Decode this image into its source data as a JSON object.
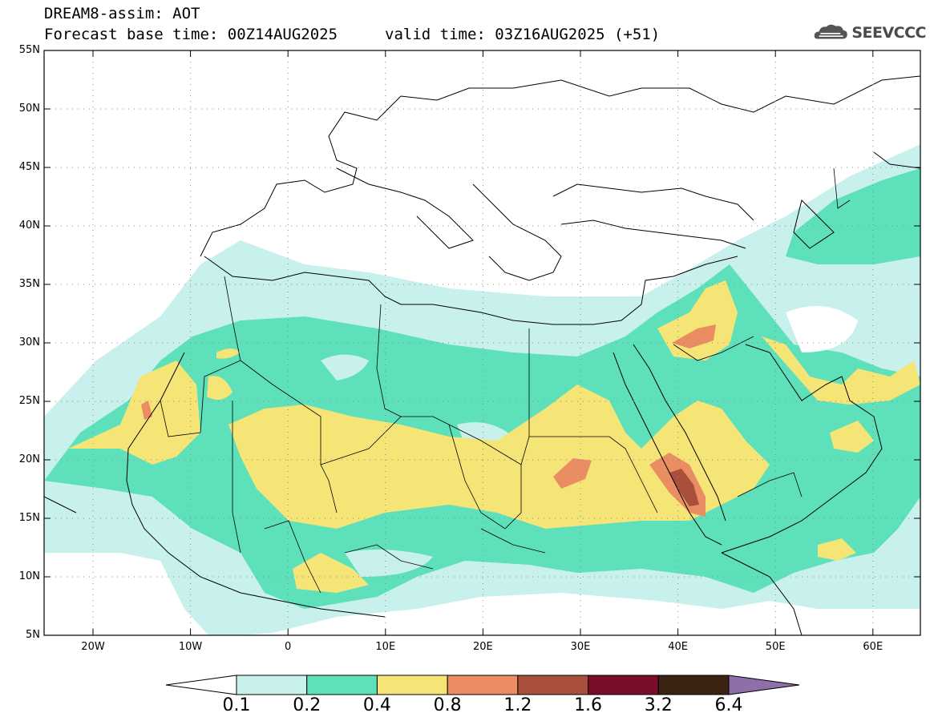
{
  "header": {
    "title": "DREAM8-assim: AOT",
    "base_time": "Forecast base time: 00Z14AUG2025",
    "valid_time": "valid time: 03Z16AUG2025 (+51)",
    "logo_text": "SEEVCCC"
  },
  "map": {
    "lat_labels": [
      "55N",
      "50N",
      "45N",
      "40N",
      "35N",
      "30N",
      "25N",
      "20N",
      "15N",
      "10N",
      "5N"
    ],
    "lon_labels": [
      "20W",
      "10W",
      "0",
      "10E",
      "20E",
      "30E",
      "40E",
      "50E",
      "60E"
    ]
  },
  "colorbar": {
    "labels": [
      "0.1",
      "0.2",
      "0.4",
      "0.8",
      "1.2",
      "1.6",
      "3.2",
      "6.4"
    ],
    "colors": [
      "#ffffff",
      "#c8f0ec",
      "#5ee0bb",
      "#f5e577",
      "#ea8d63",
      "#a94f3b",
      "#7a0d29",
      "#3a2312",
      "#8f6fa8"
    ]
  },
  "legend_colors": {
    "c01": "#c8f0ec",
    "c02": "#5ee0bb",
    "c04": "#f5e577",
    "c08": "#ea8d63",
    "c12": "#a94f3b"
  }
}
